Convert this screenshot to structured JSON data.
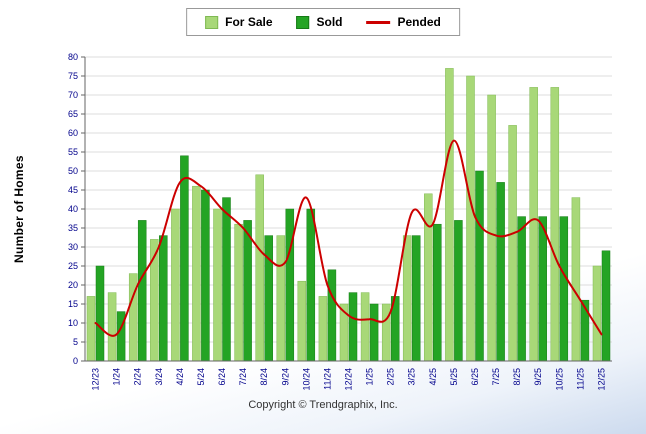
{
  "footer": {
    "text": "Copyright © Trendgraphix, Inc."
  },
  "chart_data": {
    "type": "bar",
    "title": "",
    "ylabel": "Number of Homes",
    "xlabel": "",
    "ylim": [
      0,
      80
    ],
    "ytick_step": 5,
    "grid": true,
    "legend_position": "top-center",
    "tick_label_color": "#00008B",
    "grid_color": "#DCDCDC",
    "axis_color": "#666666",
    "categories": [
      "12/23",
      "1/24",
      "2/24",
      "3/24",
      "4/24",
      "5/24",
      "6/24",
      "7/24",
      "8/24",
      "9/24",
      "10/24",
      "11/24",
      "12/24",
      "1/25",
      "2/25",
      "3/25",
      "4/25",
      "5/25",
      "6/25",
      "7/25",
      "8/25",
      "9/25",
      "10/25",
      "11/25",
      "12/25"
    ],
    "series": [
      {
        "name": "For Sale",
        "type": "bar",
        "color": "#A8D878",
        "edge_color": "#7FB953",
        "values": [
          17,
          18,
          23,
          32,
          40,
          46,
          40,
          36,
          49,
          33,
          21,
          17,
          15,
          18,
          15,
          33,
          44,
          77,
          75,
          70,
          62,
          72,
          72,
          43,
          25
        ]
      },
      {
        "name": "Sold",
        "type": "bar",
        "color": "#24A424",
        "edge_color": "#167A16",
        "values": [
          25,
          13,
          37,
          33,
          54,
          45,
          43,
          37,
          33,
          40,
          40,
          24,
          18,
          15,
          17,
          33,
          36,
          37,
          50,
          47,
          38,
          38,
          38,
          16,
          29
        ]
      },
      {
        "name": "Pended",
        "type": "line",
        "color": "#CC0000",
        "values": [
          10,
          7,
          20,
          30,
          47,
          46,
          40,
          35,
          28,
          26,
          43,
          20,
          12,
          11,
          13,
          39,
          36,
          58,
          38,
          33,
          34,
          37,
          25,
          16,
          7
        ]
      }
    ]
  }
}
